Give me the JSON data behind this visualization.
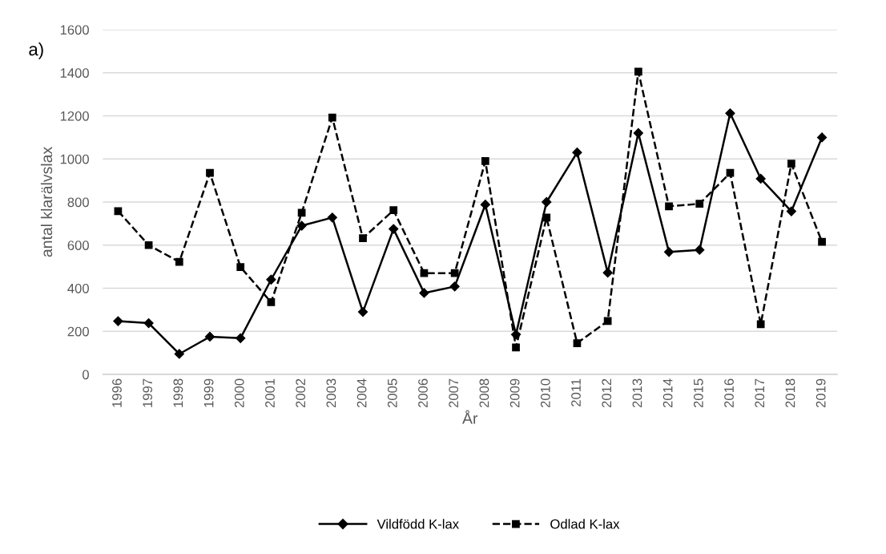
{
  "chart_data": {
    "type": "line",
    "xlabel": "År",
    "ylabel": "antal klarälvslax",
    "annotations": [
      "a)"
    ],
    "categories": [
      "1996",
      "1997",
      "1998",
      "1999",
      "2000",
      "2001",
      "2002",
      "2003",
      "2004",
      "2005",
      "2006",
      "2007",
      "2008",
      "2009",
      "2010",
      "2011",
      "2012",
      "2013",
      "2014",
      "2015",
      "2016",
      "2017",
      "2018",
      "2019"
    ],
    "series": [
      {
        "name": "Vildfödd K-lax",
        "color": "#000000",
        "marker": "diamond",
        "line_style": "solid",
        "values": [
          247,
          238,
          95,
          175,
          168,
          440,
          690,
          728,
          290,
          675,
          378,
          408,
          788,
          185,
          800,
          1030,
          472,
          1120,
          568,
          578,
          1212,
          908,
          757,
          1100
        ]
      },
      {
        "name": "Odlad K-lax",
        "color": "#000000",
        "marker": "square",
        "line_style": "dashed",
        "values": [
          758,
          600,
          522,
          935,
          498,
          335,
          750,
          1192,
          632,
          762,
          470,
          470,
          990,
          125,
          728,
          145,
          248,
          1405,
          780,
          792,
          935,
          233,
          978,
          615
        ]
      }
    ],
    "ylim": [
      0,
      1600
    ],
    "yticks": [
      0,
      200,
      400,
      600,
      800,
      1000,
      1200,
      1400,
      1600
    ],
    "grid": "y",
    "legend": "bottom"
  }
}
